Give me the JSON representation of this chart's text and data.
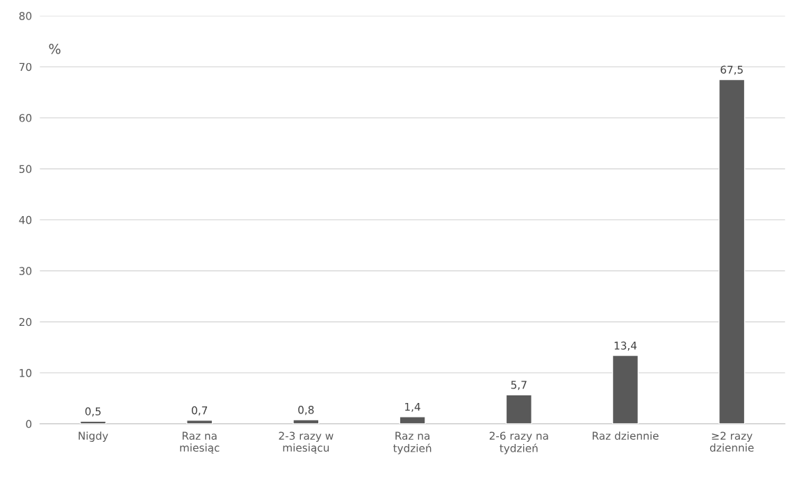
{
  "chart_data": {
    "type": "bar",
    "ylabel": "%",
    "categories": [
      "Nigdy",
      "Raz na miesiąc",
      "2-3 razy w miesiącu",
      "Raz na tydzień",
      "2-6 razy na tydzień",
      "Raz dziennie",
      "≥2 razy dziennie"
    ],
    "values": [
      0.5,
      0.7,
      0.8,
      1.4,
      5.7,
      13.4,
      67.5
    ],
    "value_labels": [
      "0,5",
      "0,7",
      "0,8",
      "1,4",
      "5,7",
      "13,4",
      "67,5"
    ],
    "color": "#595959",
    "ylim": [
      0,
      80
    ],
    "yticks": [
      0,
      10,
      20,
      30,
      40,
      50,
      60,
      70,
      80
    ],
    "grid": "y",
    "legend": false
  }
}
